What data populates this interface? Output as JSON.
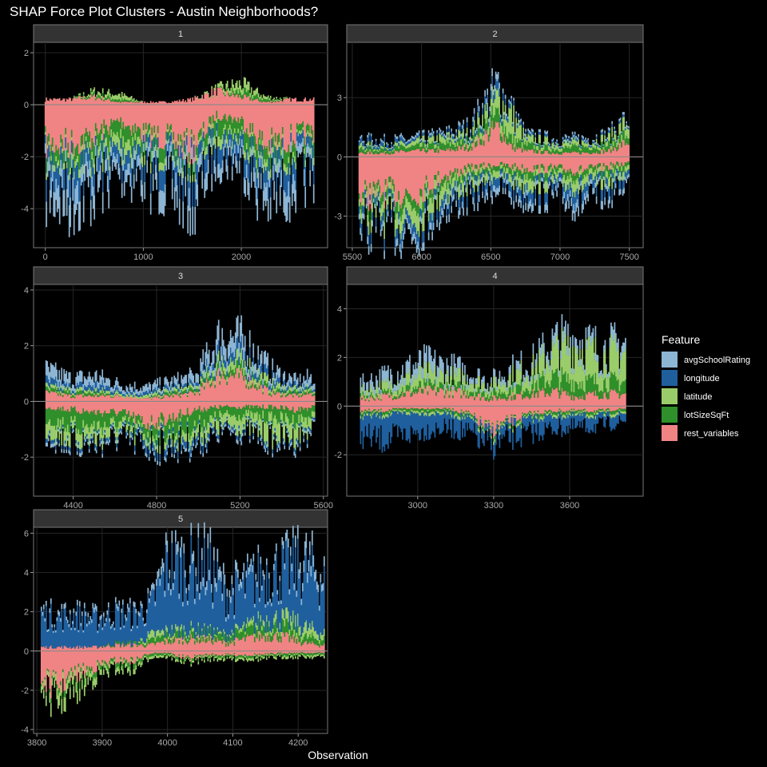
{
  "title": "SHAP Force Plot Clusters - Austin Neighborhoods?",
  "xlabel": "Observation",
  "legend": {
    "title": "Feature",
    "items": [
      {
        "label": "avgSchoolRating",
        "color": "#8db5d4"
      },
      {
        "label": "longitude",
        "color": "#1f5f9e"
      },
      {
        "label": "latitude",
        "color": "#9acd6a"
      },
      {
        "label": "lotSizeSqFt",
        "color": "#2f8f2a"
      },
      {
        "label": "rest_variables",
        "color": "#f08484"
      }
    ]
  },
  "chart_data": {
    "type": "area",
    "description_series": [
      "avgSchoolRating",
      "longitude",
      "latitude",
      "lotSizeSqFt",
      "rest_variables"
    ],
    "legend_placement": "right",
    "grid": true,
    "panels": [
      {
        "strip": "1",
        "xlim": [
          -120,
          2880
        ],
        "ylim": [
          -5.5,
          2.4
        ],
        "x_ticks": [
          0,
          1000,
          2000
        ],
        "y_ticks": [
          -4,
          -2,
          0,
          2
        ],
        "x": [
          0,
          250,
          500,
          750,
          1000,
          1250,
          1500,
          1750,
          2000,
          2250,
          2500,
          2750
        ],
        "stacks": {
          "rest_variables": [
            {
              "x": [
                0,
                2750
              ],
              "pos": [
                0.2,
                0.2,
                0.3,
                0.1,
                0.1,
                0.1,
                0.2,
                0.5,
                0.3,
                0.1,
                0.2,
                0.2
              ],
              "neg": [
                -1.5,
                -1.5,
                -1.2,
                -0.6,
                -1.1,
                -1.3,
                -1.7,
                -0.4,
                -0.6,
                -1.6,
                -1.3,
                -1.0
              ]
            }
          ],
          "lotSizeSqFt": {
            "pos": [
              0.0,
              0.0,
              0.1,
              0.1,
              0.0,
              0.0,
              0.0,
              0.0,
              0.2,
              0.1,
              0.0,
              0.0
            ],
            "neg": [
              -0.4,
              -0.4,
              -0.5,
              -0.6,
              -0.4,
              -0.4,
              -0.3,
              -0.5,
              -0.5,
              -0.5,
              -0.4,
              -0.4
            ]
          },
          "latitude": {
            "pos": [
              0.0,
              0.0,
              0.1,
              0.2,
              0.0,
              0.0,
              0.0,
              0.1,
              0.3,
              0.1,
              0.0,
              0.0
            ],
            "neg": [
              -0.2,
              -0.2,
              -0.3,
              -0.5,
              -0.3,
              -0.2,
              -0.2,
              -0.3,
              -0.2,
              -0.3,
              -0.2,
              -0.2
            ]
          },
          "longitude": {
            "pos": [
              0,
              0,
              0,
              0,
              0,
              0,
              0,
              0,
              0,
              0,
              0,
              0
            ],
            "neg": [
              -0.6,
              -0.7,
              -0.6,
              -0.5,
              -0.5,
              -0.6,
              -0.7,
              -0.5,
              -0.5,
              -0.6,
              -0.6,
              -0.5
            ]
          },
          "avgSchoolRating": {
            "pos": [
              0,
              0,
              0,
              0,
              0,
              0,
              0,
              0,
              0,
              0,
              0,
              0
            ],
            "neg": [
              -0.7,
              -0.9,
              -0.7,
              -0.4,
              -0.5,
              -0.7,
              -0.8,
              -0.4,
              -0.4,
              -0.7,
              -0.7,
              -0.5
            ]
          }
        }
      },
      {
        "strip": "2",
        "xlim": [
          5460,
          7600
        ],
        "ylim": [
          -4.6,
          5.8
        ],
        "x_ticks": [
          5500,
          6000,
          6500,
          7000,
          7500
        ],
        "y_ticks": [
          -3,
          0,
          3
        ],
        "x": [
          5550,
          5750,
          5950,
          6150,
          6350,
          6550,
          6650,
          6750,
          6950,
          7150,
          7350,
          7500
        ],
        "stacks": {
          "rest_variables": {
            "pos": [
              0.2,
              0.2,
              0.3,
              0.3,
              0.5,
              1.5,
              0.5,
              0.3,
              0.2,
              0.2,
              0.3,
              0.8
            ],
            "neg": [
              -2.0,
              -1.8,
              -1.9,
              -1.0,
              -0.6,
              -0.4,
              -0.5,
              -0.6,
              -0.6,
              -0.7,
              -0.5,
              -0.3
            ]
          },
          "lotSizeSqFt": {
            "pos": [
              0.2,
              0.2,
              0.2,
              0.3,
              0.3,
              0.6,
              0.4,
              0.3,
              0.2,
              0.3,
              0.3,
              0.4
            ],
            "neg": [
              -0.3,
              -0.5,
              -0.4,
              -0.3,
              -0.3,
              -0.2,
              -0.3,
              -0.3,
              -0.3,
              -0.3,
              -0.3,
              -0.2
            ]
          },
          "latitude": {
            "pos": [
              0.2,
              0.1,
              0.2,
              0.3,
              0.3,
              0.8,
              1.2,
              0.3,
              0.3,
              0.2,
              0.3,
              0.6
            ],
            "neg": [
              -0.4,
              -0.6,
              -0.7,
              -0.6,
              -0.5,
              -0.3,
              -0.4,
              -0.5,
              -0.4,
              -0.5,
              -0.4,
              -0.3
            ]
          },
          "longitude": {
            "pos": [
              0.2,
              0.2,
              0.1,
              0.1,
              0.2,
              0.4,
              0.2,
              0.1,
              0.1,
              0.1,
              0.1,
              0.1
            ],
            "neg": [
              -0.4,
              -0.4,
              -0.4,
              -0.4,
              -0.4,
              -0.4,
              -0.4,
              -0.4,
              -0.4,
              -0.5,
              -0.4,
              -0.3
            ]
          },
          "avgSchoolRating": {
            "pos": [
              0.1,
              0.1,
              0.1,
              0.1,
              0.2,
              0.3,
              0.1,
              0.1,
              0.1,
              0.1,
              0.1,
              0.1
            ],
            "neg": [
              -0.3,
              -0.3,
              -0.3,
              -0.3,
              -0.3,
              -0.3,
              -0.3,
              -0.3,
              -0.3,
              -0.4,
              -0.3,
              -0.2
            ]
          }
        }
      },
      {
        "strip": "3",
        "xlim": [
          4210,
          5620
        ],
        "ylim": [
          -3.4,
          4.2
        ],
        "x_ticks": [
          4400,
          4800,
          5200,
          5600
        ],
        "y_ticks": [
          -2,
          0,
          2,
          4
        ],
        "x": [
          4270,
          4390,
          4510,
          4630,
          4750,
          4870,
          4990,
          5110,
          5230,
          5350,
          5470,
          5560
        ],
        "stacks": {
          "rest_variables": {
            "pos": [
              0.3,
              0.2,
              0.2,
              0.2,
              0.1,
              0.2,
              0.3,
              1.0,
              0.8,
              0.3,
              0.2,
              0.3
            ],
            "neg": [
              -0.2,
              -0.3,
              -0.4,
              -0.4,
              -0.8,
              -0.6,
              -0.3,
              -0.2,
              -0.2,
              -0.2,
              -0.3,
              -0.2
            ]
          },
          "lotSizeSqFt": {
            "pos": [
              0.1,
              0.1,
              0.1,
              0.0,
              0.0,
              0.1,
              0.1,
              0.2,
              0.2,
              0.1,
              0.1,
              0.1
            ],
            "neg": [
              -0.4,
              -0.6,
              -0.5,
              -0.4,
              -0.3,
              -0.5,
              -0.6,
              -0.3,
              -0.3,
              -0.4,
              -0.4,
              -0.3
            ]
          },
          "latitude": {
            "pos": [
              0.1,
              0.1,
              0.1,
              0.1,
              0.1,
              0.1,
              0.1,
              0.3,
              0.3,
              0.2,
              0.1,
              0.1
            ],
            "neg": [
              -0.4,
              -0.4,
              -0.4,
              -0.3,
              -0.2,
              -0.2,
              -0.3,
              -0.4,
              -0.4,
              -0.6,
              -0.5,
              -0.3
            ]
          },
          "longitude": {
            "pos": [
              0.2,
              0.1,
              0.2,
              0.1,
              0.1,
              0.1,
              0.1,
              0.3,
              0.3,
              0.2,
              0.1,
              0.1
            ],
            "neg": [
              -0.1,
              -0.1,
              -0.1,
              -0.1,
              -0.2,
              -0.2,
              -0.2,
              -0.1,
              -0.1,
              -0.1,
              -0.1,
              -0.1
            ]
          },
          "avgSchoolRating": {
            "pos": [
              0.4,
              0.3,
              0.3,
              0.2,
              0.2,
              0.2,
              0.3,
              0.6,
              0.5,
              0.3,
              0.2,
              0.3
            ],
            "neg": [
              -0.1,
              -0.1,
              -0.1,
              -0.1,
              -0.1,
              -0.1,
              -0.1,
              -0.1,
              -0.1,
              -0.1,
              -0.1,
              -0.1
            ]
          }
        }
      },
      {
        "strip": "4",
        "xlim": [
          2720,
          3890
        ],
        "ylim": [
          -3.7,
          5.0
        ],
        "x_ticks": [
          3000,
          3300,
          3600
        ],
        "y_ticks": [
          -2,
          0,
          2,
          4
        ],
        "x": [
          2775,
          2860,
          2945,
          3030,
          3115,
          3200,
          3285,
          3370,
          3455,
          3540,
          3625,
          3725,
          3825
        ],
        "stacks": {
          "rest_variables": {
            "pos": [
              0.3,
              0.4,
              0.5,
              0.6,
              0.6,
              0.5,
              0.3,
              0.4,
              0.5,
              0.6,
              0.4,
              0.5,
              0.5
            ],
            "neg": [
              -0.2,
              -0.2,
              -0.1,
              -0.1,
              -0.1,
              -0.3,
              -1.0,
              -0.6,
              -0.3,
              -0.2,
              -0.2,
              -0.2,
              -0.1
            ]
          },
          "lotSizeSqFt": {
            "pos": [
              0.1,
              0.1,
              0.2,
              0.2,
              0.2,
              0.2,
              0.2,
              0.3,
              0.4,
              0.6,
              0.6,
              0.5,
              0.5
            ],
            "neg": [
              -0.1,
              -0.1,
              -0.1,
              -0.1,
              -0.1,
              -0.1,
              -0.1,
              -0.1,
              -0.1,
              -0.1,
              -0.1,
              -0.1,
              -0.1
            ]
          },
          "latitude": {
            "pos": [
              0.2,
              0.3,
              0.4,
              0.5,
              0.4,
              0.4,
              0.3,
              0.5,
              0.6,
              1.0,
              1.4,
              1.0,
              1.2
            ],
            "neg": [
              -0.1,
              -0.1,
              -0.1,
              -0.1,
              -0.1,
              -0.1,
              -0.1,
              -0.1,
              -0.1,
              -0.1,
              -0.1,
              -0.1,
              -0.1
            ]
          },
          "longitude": {
            "pos": [
              0.0,
              0.0,
              0.0,
              0.0,
              0.0,
              0.0,
              0.0,
              0.0,
              0.0,
              0.0,
              0.0,
              0.0,
              0.0
            ],
            "neg": [
              -0.8,
              -1.0,
              -0.9,
              -0.7,
              -0.6,
              -0.6,
              -0.4,
              -0.5,
              -0.6,
              -0.5,
              -0.5,
              -0.4,
              -0.3
            ]
          },
          "avgSchoolRating": {
            "pos": [
              0.3,
              0.4,
              0.4,
              0.5,
              0.4,
              0.3,
              0.2,
              0.3,
              0.3,
              0.4,
              0.4,
              0.3,
              0.4
            ],
            "neg": [
              0,
              0,
              0,
              0,
              0,
              0,
              0,
              0,
              0,
              0,
              0,
              0,
              0
            ]
          }
        }
      },
      {
        "strip": "5",
        "xlim": [
          3795,
          4245
        ],
        "ylim": [
          -4.2,
          6.3
        ],
        "x_ticks": [
          3800,
          3900,
          4000,
          4100,
          4200
        ],
        "y_ticks": [
          -4,
          -2,
          0,
          2,
          4,
          6
        ],
        "x": [
          3807,
          3830,
          3860,
          3890,
          3920,
          3950,
          3975,
          4000,
          4030,
          4060,
          4090,
          4120,
          4150,
          4180,
          4210,
          4240
        ],
        "stacks": {
          "rest_variables": {
            "pos": [
              0.2,
              0.2,
              0.2,
              0.2,
              0.3,
              0.3,
              0.3,
              0.5,
              0.6,
              0.6,
              0.4,
              0.6,
              0.8,
              0.7,
              0.4,
              0.3
            ],
            "neg": [
              -1.5,
              -1.8,
              -1.2,
              -0.8,
              -0.5,
              -0.5,
              -0.1,
              -0.1,
              -0.4,
              -0.2,
              -0.2,
              -0.2,
              -0.2,
              -0.1,
              -0.1,
              -0.1
            ]
          },
          "lotSizeSqFt": {
            "pos": [
              0.0,
              0.0,
              0.0,
              0.0,
              0.1,
              0.1,
              0.2,
              0.3,
              0.3,
              0.3,
              0.3,
              0.4,
              0.5,
              0.5,
              0.3,
              0.3
            ],
            "neg": [
              -0.1,
              -0.2,
              -0.3,
              -0.2,
              -0.2,
              -0.2,
              -0.1,
              -0.1,
              -0.1,
              -0.1,
              -0.1,
              -0.1,
              -0.1,
              -0.1,
              -0.1,
              -0.1
            ]
          },
          "latitude": {
            "pos": [
              0.0,
              0.0,
              0.0,
              0.0,
              0.0,
              0.0,
              0.3,
              0.2,
              0.2,
              0.1,
              0.1,
              0.2,
              0.3,
              0.4,
              0.5,
              0.3
            ],
            "neg": [
              -0.3,
              -0.6,
              -0.5,
              -0.3,
              -0.2,
              -0.2,
              -0.1,
              -0.1,
              -0.1,
              -0.1,
              -0.1,
              -0.1,
              -0.1,
              -0.1,
              -0.1,
              -0.1
            ]
          },
          "longitude": {
            "pos": [
              1.6,
              1.4,
              1.5,
              1.3,
              1.4,
              1.3,
              1.4,
              3.2,
              3.0,
              3.1,
              1.9,
              2.0,
              2.2,
              2.4,
              2.8,
              2.5
            ],
            "neg": [
              0,
              0,
              0,
              0,
              0,
              0,
              0,
              0,
              0,
              0,
              0,
              0,
              0,
              0,
              0,
              0
            ]
          },
          "avgSchoolRating": {
            "pos": [
              0.2,
              0.2,
              0.2,
              0.2,
              0.2,
              0.2,
              0.2,
              0.5,
              0.4,
              0.6,
              0.4,
              0.3,
              0.3,
              0.3,
              0.6,
              0.4
            ],
            "neg": [
              0,
              0,
              0,
              0,
              0,
              0,
              0,
              0,
              0,
              0,
              0,
              0,
              0,
              0,
              0,
              0
            ]
          }
        }
      }
    ]
  }
}
